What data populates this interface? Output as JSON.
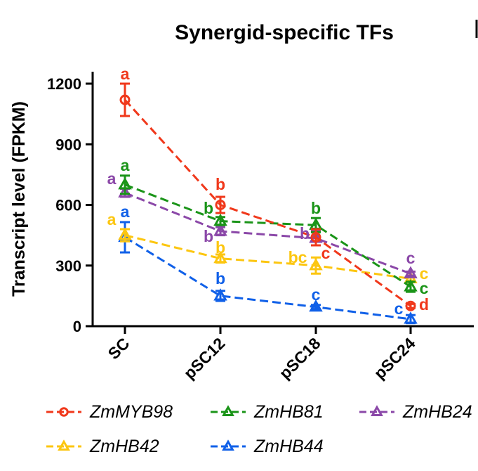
{
  "chart_data": {
    "type": "line",
    "title": "Synergid-specific TFs",
    "xlabel": "",
    "ylabel": "Transcript level (FPKM)",
    "categories": [
      "SC",
      "pSC12",
      "pSC18",
      "pSC24"
    ],
    "ylim": [
      0,
      1260
    ],
    "yticks": [
      0,
      300,
      600,
      900,
      1200
    ],
    "series": [
      {
        "name": "ZmMYB98",
        "color": "#f0381b",
        "marker": "circle",
        "values": [
          1120,
          600,
          440,
          100
        ],
        "errors": [
          80,
          40,
          40,
          10
        ],
        "letters": [
          "a",
          "b",
          "c",
          "d"
        ]
      },
      {
        "name": "ZmHB81",
        "color": "#1a9418",
        "marker": "triangle",
        "values": [
          700,
          520,
          500,
          195
        ],
        "errors": [
          45,
          20,
          35,
          25
        ],
        "letters": [
          "a",
          "b",
          "b",
          "c"
        ]
      },
      {
        "name": "ZmHB24",
        "color": "#8b48a8",
        "marker": "triangle",
        "values": [
          660,
          470,
          435,
          260
        ],
        "errors": [
          20,
          20,
          35,
          10
        ],
        "letters": [
          "a",
          "b",
          "b",
          "c"
        ]
      },
      {
        "name": "ZmHB42",
        "color": "#fcc610",
        "marker": "triangle",
        "values": [
          450,
          335,
          300,
          235
        ],
        "errors": [
          30,
          20,
          40,
          10
        ],
        "letters": [
          "a",
          "b",
          "bc",
          "c"
        ]
      },
      {
        "name": "ZmHB44",
        "color": "#1060e8",
        "marker": "triangle",
        "values": [
          440,
          150,
          95,
          35
        ],
        "errors": [
          75,
          25,
          10,
          20
        ],
        "letters": [
          "a",
          "b",
          "c",
          "c"
        ]
      }
    ]
  }
}
